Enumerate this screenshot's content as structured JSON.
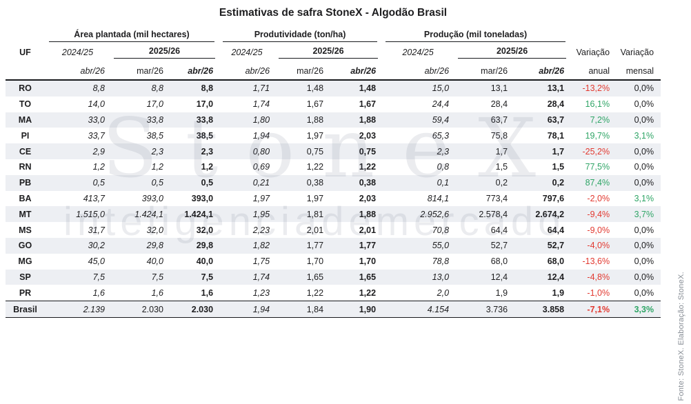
{
  "title": "Estimativas de safra StoneX - Algodão Brasil",
  "watermark": {
    "line1": "StoneX",
    "line2": "inteligenciademercado"
  },
  "source_note": "Fonte: StoneX.  Elaboração: StoneX.",
  "colors": {
    "negative": "#e23930",
    "positive": "#2fa566",
    "neutral": "#1d1d1f",
    "stripe": "#edeff3",
    "border": "#17191c"
  },
  "table": {
    "uf_header": "UF",
    "groups": [
      {
        "label": "Área plantada (mil hectares)"
      },
      {
        "label": "Produtividade (ton/ha)"
      },
      {
        "label": "Produção (mil toneladas)"
      }
    ],
    "season_prev": "2024/25",
    "season_curr": "2025/26",
    "sub_prev": "abr/26",
    "sub_curr_1": "mar/26",
    "sub_curr_2": "abr/26",
    "variacao": [
      {
        "line1": "Variação",
        "line2": "anual"
      },
      {
        "line1": "Variação",
        "line2": "mensal"
      }
    ]
  },
  "chart_data": {
    "type": "table",
    "title": "Estimativas de safra StoneX - Algodão Brasil",
    "column_groups": [
      "Área plantada (mil hectares)",
      "Produtividade (ton/ha)",
      "Produção (mil toneladas)",
      "Variação"
    ],
    "columns": [
      "UF",
      "Área plantada 2024/25 abr/26",
      "Área plantada 2025/26 mar/26",
      "Área plantada 2025/26 abr/26",
      "Produtividade 2024/25 abr/26",
      "Produtividade 2025/26 mar/26",
      "Produtividade 2025/26 abr/26",
      "Produção 2024/25 abr/26",
      "Produção 2025/26 mar/26",
      "Produção 2025/26 abr/26",
      "Variação anual",
      "Variação mensal"
    ],
    "rows": [
      [
        "RO",
        "8,8",
        "8,8",
        "8,8",
        "1,71",
        "1,48",
        "1,48",
        "15,0",
        "13,1",
        "13,1",
        "-13,2%",
        "0,0%"
      ],
      [
        "TO",
        "14,0",
        "17,0",
        "17,0",
        "1,74",
        "1,67",
        "1,67",
        "24,4",
        "28,4",
        "28,4",
        "16,1%",
        "0,0%"
      ],
      [
        "MA",
        "33,0",
        "33,8",
        "33,8",
        "1,80",
        "1,88",
        "1,88",
        "59,4",
        "63,7",
        "63,7",
        "7,2%",
        "0,0%"
      ],
      [
        "PI",
        "33,7",
        "38,5",
        "38,5",
        "1,94",
        "1,97",
        "2,03",
        "65,3",
        "75,8",
        "78,1",
        "19,7%",
        "3,1%"
      ],
      [
        "CE",
        "2,9",
        "2,3",
        "2,3",
        "0,80",
        "0,75",
        "0,75",
        "2,3",
        "1,7",
        "1,7",
        "-25,2%",
        "0,0%"
      ],
      [
        "RN",
        "1,2",
        "1,2",
        "1,2",
        "0,69",
        "1,22",
        "1,22",
        "0,8",
        "1,5",
        "1,5",
        "77,5%",
        "0,0%"
      ],
      [
        "PB",
        "0,5",
        "0,5",
        "0,5",
        "0,21",
        "0,38",
        "0,38",
        "0,1",
        "0,2",
        "0,2",
        "87,4%",
        "0,0%"
      ],
      [
        "BA",
        "413,7",
        "393,0",
        "393,0",
        "1,97",
        "1,97",
        "2,03",
        "814,1",
        "773,4",
        "797,6",
        "-2,0%",
        "3,1%"
      ],
      [
        "MT",
        "1.515,0",
        "1.424,1",
        "1.424,1",
        "1,95",
        "1,81",
        "1,88",
        "2.952,6",
        "2.578,4",
        "2.674,2",
        "-9,4%",
        "3,7%"
      ],
      [
        "MS",
        "31,7",
        "32,0",
        "32,0",
        "2,23",
        "2,01",
        "2,01",
        "70,8",
        "64,4",
        "64,4",
        "-9,0%",
        "0,0%"
      ],
      [
        "GO",
        "30,2",
        "29,8",
        "29,8",
        "1,82",
        "1,77",
        "1,77",
        "55,0",
        "52,7",
        "52,7",
        "-4,0%",
        "0,0%"
      ],
      [
        "MG",
        "45,0",
        "40,0",
        "40,0",
        "1,75",
        "1,70",
        "1,70",
        "78,8",
        "68,0",
        "68,0",
        "-13,6%",
        "0,0%"
      ],
      [
        "SP",
        "7,5",
        "7,5",
        "7,5",
        "1,74",
        "1,65",
        "1,65",
        "13,0",
        "12,4",
        "12,4",
        "-4,8%",
        "0,0%"
      ],
      [
        "PR",
        "1,6",
        "1,6",
        "1,6",
        "1,23",
        "1,22",
        "1,22",
        "2,0",
        "1,9",
        "1,9",
        "-1,0%",
        "0,0%"
      ],
      [
        "Brasil",
        "2.139",
        "2.030",
        "2.030",
        "1,94",
        "1,84",
        "1,90",
        "4.154",
        "3.736",
        "3.858",
        "-7,1%",
        "3,3%"
      ]
    ]
  }
}
